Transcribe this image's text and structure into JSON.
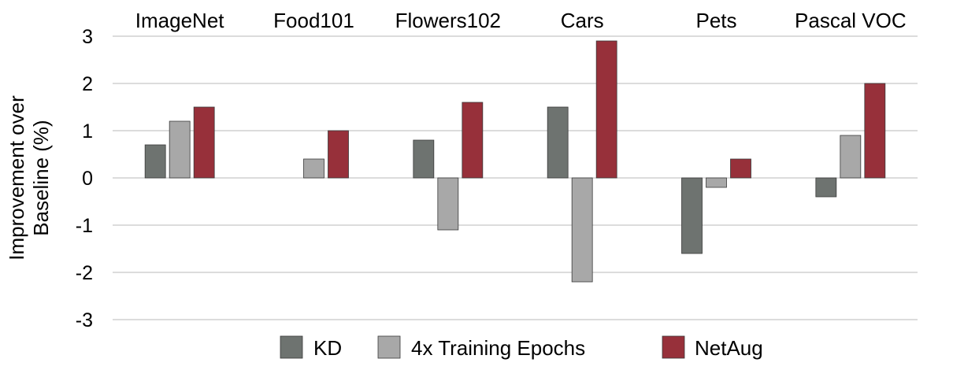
{
  "chart_data": {
    "type": "bar",
    "categories": [
      "ImageNet",
      "Food101",
      "Flowers102",
      "Cars",
      "Pets",
      "Pascal VOC"
    ],
    "series": [
      {
        "name": "KD",
        "color": "#6e7370",
        "values": [
          0.7,
          null,
          0.8,
          1.5,
          -1.6,
          -0.4
        ]
      },
      {
        "name": "4x Training Epochs",
        "color": "#a8a8a8",
        "values": [
          1.2,
          0.4,
          -1.1,
          -2.2,
          -0.2,
          0.9
        ]
      },
      {
        "name": "NetAug",
        "color": "#97303a",
        "values": [
          1.5,
          1.0,
          1.6,
          2.9,
          0.4,
          2.0
        ]
      }
    ],
    "ylabel_lines": [
      "Improvement over",
      "Baseline (%)"
    ],
    "yticks": [
      "3",
      "2",
      "1",
      "0",
      "-1",
      "-2",
      "-3"
    ],
    "ylim": [
      -3,
      3
    ],
    "grid": true,
    "legend_position": "bottom"
  }
}
